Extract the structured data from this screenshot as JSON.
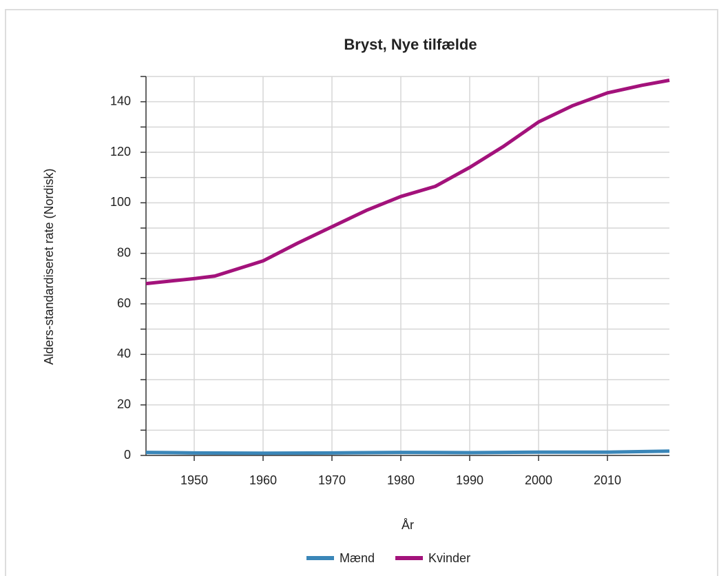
{
  "chart_data": {
    "type": "line",
    "title": "Bryst, Nye tilfælde",
    "xlabel": "År",
    "ylabel": "Alders-standardiseret rate (Nordisk)",
    "xlim": [
      1943,
      2019
    ],
    "xticks": [
      1950,
      1960,
      1970,
      1980,
      1990,
      2000,
      2010
    ],
    "ylim": [
      0,
      150
    ],
    "yticks": [
      0,
      20,
      40,
      60,
      80,
      100,
      120,
      140
    ],
    "yminorticks": [
      10,
      30,
      50,
      70,
      90,
      110,
      130,
      150
    ],
    "grid": true,
    "legend": "bottom",
    "series": [
      {
        "name": "Mænd",
        "color": "#3a86b8",
        "x": [
          1943,
          1950,
          1960,
          1970,
          1980,
          1990,
          2000,
          2010,
          2019
        ],
        "values": [
          1.2,
          1.0,
          0.9,
          1.0,
          1.2,
          1.1,
          1.3,
          1.3,
          1.7
        ]
      },
      {
        "name": "Kvinder",
        "color": "#a3127b",
        "x": [
          1943,
          1950,
          1953,
          1960,
          1965,
          1970,
          1975,
          1980,
          1985,
          1990,
          1995,
          2000,
          2005,
          2010,
          2015,
          2019
        ],
        "values": [
          68,
          70,
          71,
          77,
          84,
          90.5,
          97,
          102.5,
          106.5,
          114,
          122.5,
          132,
          138.5,
          143.5,
          146.5,
          148.5
        ]
      }
    ]
  }
}
